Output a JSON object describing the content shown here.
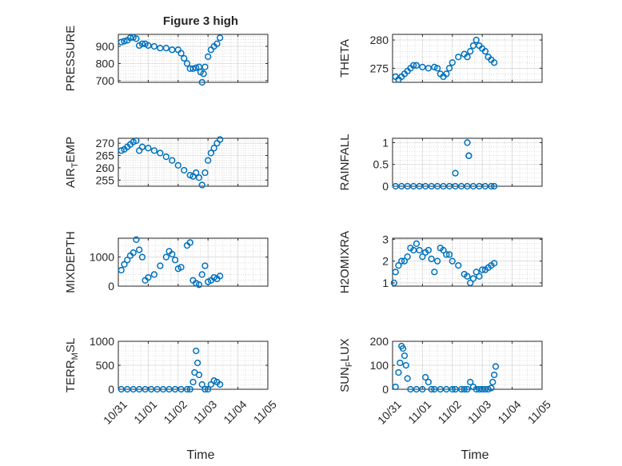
{
  "figure": {
    "title": "Figure 3 high",
    "xlabel": "Time",
    "date_ticks": [
      "10/31",
      "11/01",
      "11/02",
      "11/03",
      "11/04",
      "11/05"
    ],
    "marker_color": "#0072BD",
    "axes_color": "#262626",
    "grid_color": "#b0b0b0"
  },
  "chart_data": [
    {
      "type": "scatter",
      "ylabel": "PRESSURE",
      "ylim": [
        690,
        970
      ],
      "yticks": [
        700,
        800,
        900
      ],
      "xlim": [
        "10/31",
        "11/05"
      ],
      "grid": true,
      "series": [
        {
          "x": [
            0.1,
            0.2,
            0.3,
            0.4,
            0.5,
            0.6,
            0.7,
            0.8,
            0.9,
            1.0,
            1.2,
            1.4,
            1.6,
            1.8,
            2.0,
            2.1,
            2.2,
            2.3,
            2.4,
            2.5,
            2.6,
            2.7,
            2.75,
            2.8,
            2.85,
            2.9,
            3.0,
            3.1,
            3.2,
            3.3,
            3.4
          ],
          "y": [
            925,
            930,
            935,
            950,
            952,
            945,
            905,
            915,
            915,
            905,
            900,
            890,
            890,
            880,
            880,
            860,
            830,
            800,
            770,
            770,
            775,
            780,
            750,
            690,
            740,
            780,
            840,
            880,
            900,
            915,
            950
          ]
        }
      ]
    },
    {
      "type": "scatter",
      "ylabel": "THETA",
      "ylim": [
        272.5,
        281
      ],
      "yticks": [
        275,
        280
      ],
      "xlim": [
        "10/31",
        "11/05"
      ],
      "grid": true,
      "series": [
        {
          "x": [
            0.1,
            0.2,
            0.3,
            0.4,
            0.5,
            0.6,
            0.7,
            0.8,
            1.0,
            1.2,
            1.4,
            1.5,
            1.6,
            1.7,
            1.8,
            1.9,
            2.0,
            2.2,
            2.4,
            2.5,
            2.6,
            2.7,
            2.8,
            2.9,
            3.0,
            3.1,
            3.2,
            3.3,
            3.4
          ],
          "y": [
            273.5,
            273.0,
            273.5,
            274,
            274.5,
            275,
            275.5,
            275.5,
            275.2,
            275,
            275.2,
            275,
            274,
            273.5,
            274,
            275,
            276,
            277,
            277.5,
            277,
            278,
            279,
            280,
            279,
            278.5,
            278,
            277,
            276.5,
            276
          ]
        }
      ]
    },
    {
      "type": "scatter",
      "ylabel": "AIR_TEMP",
      "ylim": [
        252.5,
        272
      ],
      "yticks": [
        255,
        260,
        265,
        270
      ],
      "xlim": [
        "10/31",
        "11/05"
      ],
      "grid": true,
      "series": [
        {
          "x": [
            0.1,
            0.2,
            0.3,
            0.4,
            0.5,
            0.6,
            0.7,
            0.8,
            1.0,
            1.2,
            1.4,
            1.6,
            1.8,
            2.0,
            2.2,
            2.4,
            2.5,
            2.6,
            2.7,
            2.8,
            2.9,
            3.0,
            3.1,
            3.2,
            3.3,
            3.4
          ],
          "y": [
            267,
            267.5,
            268.5,
            269.5,
            270.5,
            271,
            267,
            268.5,
            268,
            267,
            266,
            264.5,
            263,
            261,
            259,
            257,
            256.5,
            258,
            256,
            253,
            258,
            263,
            266,
            268,
            270,
            271.5
          ]
        }
      ]
    },
    {
      "type": "scatter",
      "ylabel": "RAINFALL",
      "ylim": [
        0,
        1.1
      ],
      "yticks": [
        0,
        0.5,
        1
      ],
      "xlim": [
        "10/31",
        "11/05"
      ],
      "grid": true,
      "series": [
        {
          "x": [
            0.1,
            0.3,
            0.5,
            0.7,
            0.9,
            1.1,
            1.3,
            1.5,
            1.7,
            1.9,
            2.1,
            2.3,
            2.5,
            2.7,
            2.9,
            3.1,
            3.3,
            3.4,
            2.1,
            2.5,
            2.55,
            2.55
          ],
          "y": [
            0,
            0,
            0,
            0,
            0,
            0,
            0,
            0,
            0,
            0,
            0,
            0,
            0,
            0,
            0,
            0,
            0,
            0,
            0.3,
            1.0,
            0.7,
            0.7
          ]
        }
      ]
    },
    {
      "type": "scatter",
      "ylabel": "MIXDEPTH",
      "ylim": [
        0,
        1650
      ],
      "yticks": [
        0,
        1000
      ],
      "xlim": [
        "10/31",
        "11/05"
      ],
      "grid": true,
      "series": [
        {
          "x": [
            0.1,
            0.2,
            0.3,
            0.4,
            0.5,
            0.6,
            0.7,
            0.8,
            0.9,
            1.0,
            1.2,
            1.4,
            1.6,
            1.7,
            1.8,
            1.9,
            2.0,
            2.1,
            2.3,
            2.4,
            2.5,
            2.6,
            2.7,
            2.8,
            2.9,
            3.0,
            3.1,
            3.2,
            3.3,
            3.4
          ],
          "y": [
            550,
            750,
            900,
            1050,
            1150,
            1600,
            1250,
            1000,
            200,
            300,
            400,
            700,
            1000,
            1200,
            1100,
            900,
            600,
            650,
            1400,
            1500,
            200,
            100,
            50,
            400,
            700,
            150,
            200,
            300,
            250,
            350
          ]
        }
      ]
    },
    {
      "type": "scatter",
      "ylabel": "H2OMIXRA",
      "ylim": [
        0.85,
        3.05
      ],
      "yticks": [
        1,
        2,
        3
      ],
      "xlim": [
        "10/31",
        "11/05"
      ],
      "grid": true,
      "series": [
        {
          "x": [
            0.05,
            0.1,
            0.2,
            0.3,
            0.4,
            0.5,
            0.6,
            0.7,
            0.8,
            0.9,
            1.0,
            1.1,
            1.2,
            1.3,
            1.4,
            1.5,
            1.6,
            1.7,
            1.8,
            1.9,
            2.0,
            2.2,
            2.4,
            2.5,
            2.6,
            2.7,
            2.8,
            2.9,
            3.0,
            3.1,
            3.2,
            3.3,
            3.4
          ],
          "y": [
            1.0,
            1.5,
            1.8,
            2.0,
            2.0,
            2.2,
            2.6,
            2.5,
            2.8,
            2.5,
            2.2,
            2.4,
            2.5,
            2.1,
            1.5,
            2.0,
            2.6,
            2.5,
            2.3,
            2.3,
            2.0,
            1.8,
            1.4,
            1.3,
            1.0,
            1.2,
            1.5,
            1.3,
            1.6,
            1.6,
            1.7,
            1.8,
            1.9
          ]
        }
      ]
    },
    {
      "type": "scatter",
      "ylabel": "TERR_MSL",
      "ylim": [
        0,
        1000
      ],
      "yticks": [
        0,
        500,
        1000
      ],
      "xlim": [
        "10/31",
        "11/05"
      ],
      "grid": true,
      "series": [
        {
          "x": [
            0.1,
            0.3,
            0.5,
            0.7,
            0.9,
            1.1,
            1.3,
            1.5,
            1.7,
            1.9,
            2.1,
            2.3,
            2.4,
            2.5,
            2.55,
            2.6,
            2.65,
            2.7,
            2.8,
            2.9,
            3.0,
            3.1,
            3.2,
            3.3,
            3.4
          ],
          "y": [
            0,
            0,
            0,
            0,
            0,
            0,
            0,
            0,
            0,
            0,
            0,
            0,
            0,
            150,
            350,
            800,
            550,
            300,
            100,
            0,
            0,
            100,
            180,
            150,
            100
          ]
        }
      ]
    },
    {
      "type": "scatter",
      "ylabel": "SUN_FLUX",
      "ylim": [
        0,
        200
      ],
      "yticks": [
        0,
        100,
        200
      ],
      "xlim": [
        "10/31",
        "11/05"
      ],
      "grid": true,
      "series": [
        {
          "x": [
            0.1,
            0.2,
            0.25,
            0.3,
            0.35,
            0.4,
            0.45,
            0.5,
            0.6,
            0.8,
            1.0,
            1.1,
            1.2,
            1.3,
            1.4,
            1.6,
            1.8,
            2.0,
            2.1,
            2.3,
            2.4,
            2.5,
            2.6,
            2.7,
            2.8,
            2.9,
            3.0,
            3.1,
            3.2,
            3.3,
            3.35,
            3.4,
            3.45
          ],
          "y": [
            10,
            70,
            110,
            180,
            170,
            140,
            100,
            45,
            0,
            0,
            0,
            50,
            30,
            0,
            0,
            0,
            0,
            0,
            0,
            0,
            0,
            0,
            30,
            10,
            0,
            0,
            0,
            0,
            0,
            5,
            30,
            60,
            95
          ]
        }
      ]
    }
  ]
}
